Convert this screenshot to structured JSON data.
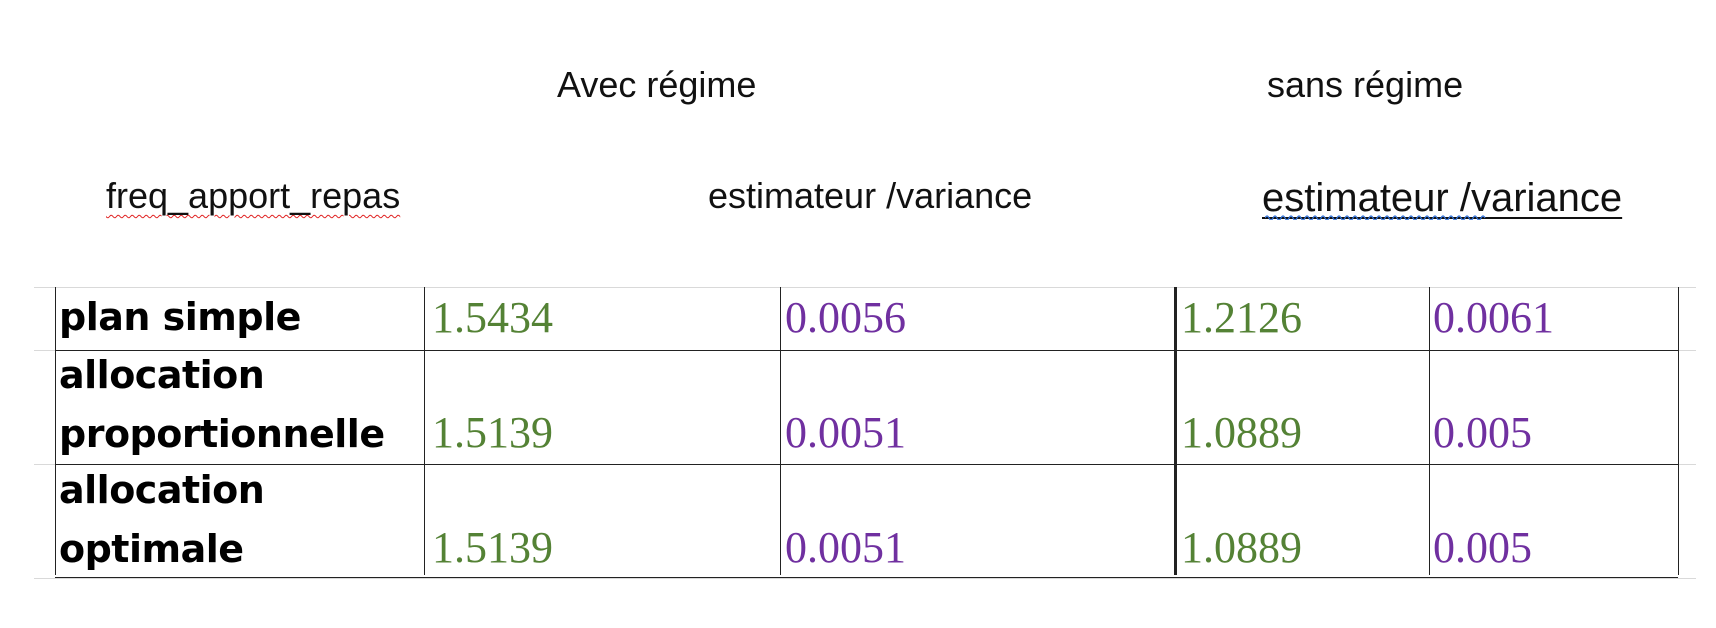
{
  "headers": {
    "avec_regime": "Avec régime",
    "sans_regime": "sans régime",
    "variable": "freq_apport_repas",
    "estimateur_variance_1": "estimateur /variance",
    "estimateur_variance_2": " estimateur /variance"
  },
  "colors": {
    "estimator_text": "#548235",
    "variance_text": "#7030a0",
    "spellcheck_red": "#e02020",
    "spellcheck_blue": "#2f6fd6"
  },
  "table": {
    "rows": [
      {
        "label_line1": "plan simple",
        "label_line2": "",
        "avec_estimateur": "1.5434",
        "avec_variance": "0.0056",
        "sans_estimateur": "1.2126",
        "sans_variance": "0.0061"
      },
      {
        "label_line1": "allocation",
        "label_line2": "proportionnelle",
        "avec_estimateur": "1.5139",
        "avec_variance": "0.0051",
        "sans_estimateur": "1.0889",
        "sans_variance": "0.005"
      },
      {
        "label_line1": "allocation",
        "label_line2": "optimale",
        "avec_estimateur": "1.5139",
        "avec_variance": "0.0051",
        "sans_estimateur": "1.0889",
        "sans_variance": "0.005"
      }
    ]
  }
}
